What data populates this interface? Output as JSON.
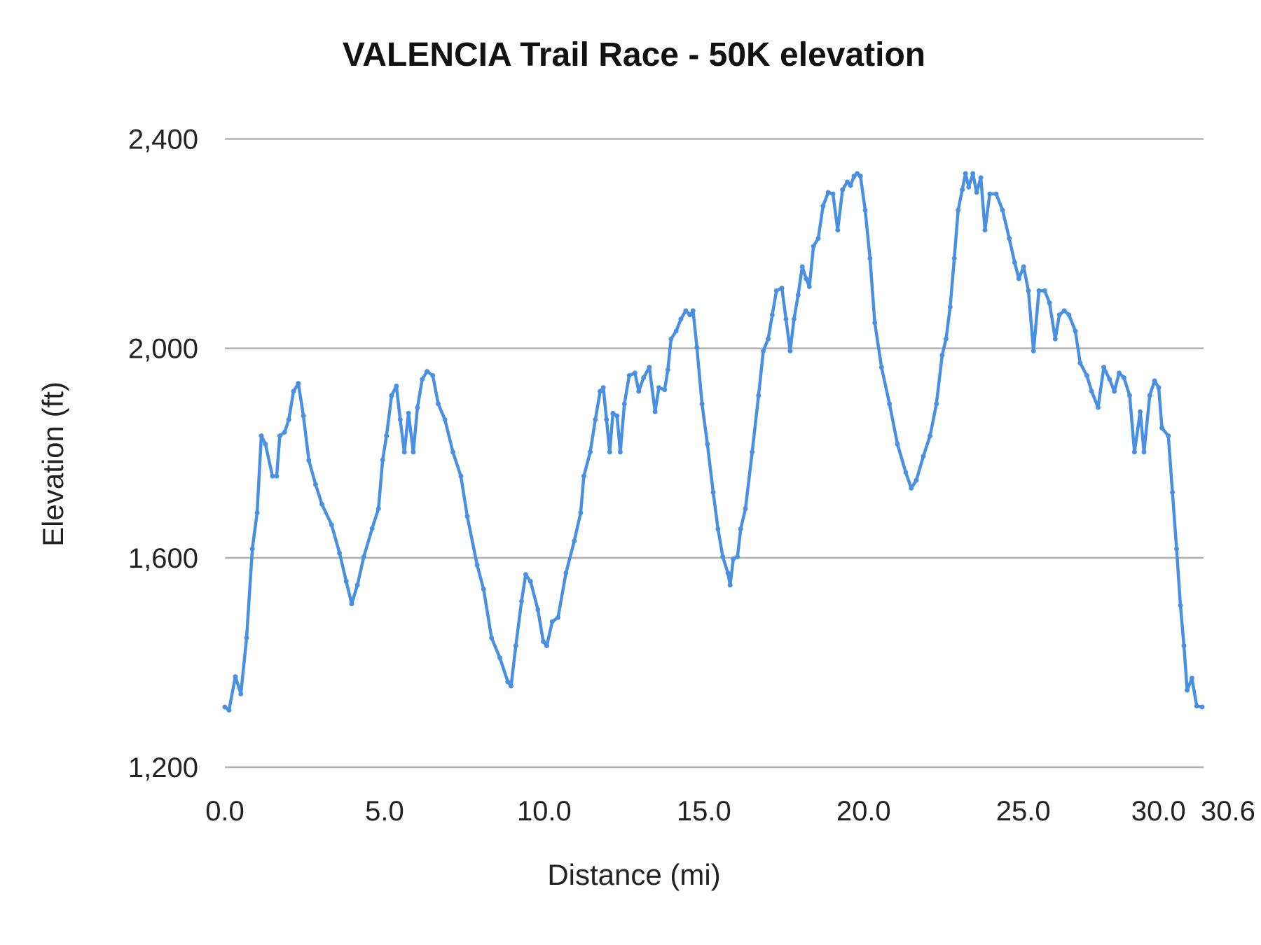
{
  "chart_data": {
    "type": "line",
    "title": "VALENCIA Trail Race - 50K elevation",
    "xlabel": "Distance (mi)",
    "ylabel": "Elevation (ft)",
    "xlim": [
      0,
      30.6
    ],
    "ylim": [
      1200,
      2400
    ],
    "x_ticks": [
      "0.0",
      "5.0",
      "10.0",
      "15.0",
      "20.0",
      "25.0",
      "30.0",
      "30.6"
    ],
    "x_tick_values": [
      0,
      5,
      10,
      15,
      20,
      25,
      30,
      30.6
    ],
    "y_ticks": [
      "2,400",
      "2,000",
      "1,600",
      "1,200"
    ],
    "y_tick_values": [
      2400,
      2000,
      1600,
      1200
    ],
    "grid": "horizontal",
    "legend": "none",
    "markers": true,
    "color": "#4a90e2",
    "series": [
      {
        "x": [
          0,
          0.13,
          0.33,
          0.5,
          0.68,
          0.86,
          1.01,
          1.14,
          1.27,
          1.49,
          1.62,
          1.72,
          1.87,
          2.0,
          2.15,
          2.3,
          2.46,
          2.63,
          2.84,
          3.04,
          3.34,
          3.59,
          3.8,
          3.97,
          4.15,
          4.35,
          4.61,
          4.81,
          4.94,
          5.06,
          5.22,
          5.37,
          5.49,
          5.62,
          5.75,
          5.9,
          6.03,
          6.18,
          6.33,
          6.51,
          6.68,
          6.89,
          7.14,
          7.39,
          7.59,
          7.9,
          8.1,
          8.35,
          8.61,
          8.86,
          8.96,
          9.11,
          9.29,
          9.42,
          9.57,
          9.8,
          9.97,
          10.08,
          10.25,
          10.43,
          10.68,
          10.94,
          11.14,
          11.24,
          11.44,
          11.6,
          11.75,
          11.85,
          11.95,
          12.05,
          12.15,
          12.28,
          12.38,
          12.51,
          12.66,
          12.84,
          12.96,
          13.11,
          13.29,
          13.47,
          13.59,
          13.77,
          13.87,
          13.97,
          14.13,
          14.28,
          14.43,
          14.56,
          14.66,
          14.78,
          14.94,
          15.11,
          15.29,
          15.44,
          15.59,
          15.75,
          15.82,
          15.92,
          16.05,
          16.15,
          16.3,
          16.51,
          16.71,
          16.86,
          17.01,
          17.14,
          17.27,
          17.44,
          17.57,
          17.7,
          17.82,
          17.95,
          18.08,
          18.2,
          18.3,
          18.43,
          18.58,
          18.73,
          18.89,
          19.04,
          19.19,
          19.34,
          19.49,
          19.59,
          19.7,
          19.8,
          19.9,
          20.05,
          20.2,
          20.35,
          20.56,
          20.81,
          21.06,
          21.32,
          21.49,
          21.65,
          21.87,
          22.08,
          22.28,
          22.46,
          22.58,
          22.71,
          22.84,
          22.96,
          23.09,
          23.19,
          23.29,
          23.42,
          23.54,
          23.67,
          23.8,
          23.95,
          24.15,
          24.35,
          24.56,
          24.73,
          24.86,
          25.01,
          25.16,
          25.32,
          25.49,
          25.67,
          25.82,
          26.0,
          26.13,
          26.28,
          26.43,
          26.63,
          26.78,
          26.99,
          27.14,
          27.34,
          27.52,
          27.7,
          27.85,
          28.0,
          28.15,
          28.33,
          28.48,
          28.66,
          28.78,
          28.96,
          29.11,
          29.24,
          29.34,
          29.54,
          29.67,
          29.8,
          29.92,
          30.03,
          30.13,
          30.28,
          30.43,
          30.6
        ],
        "y": [
          1315,
          1309,
          1373,
          1340,
          1447,
          1617,
          1686,
          1833,
          1817,
          1756,
          1756,
          1833,
          1840,
          1864,
          1918,
          1933,
          1871,
          1786,
          1740,
          1702,
          1663,
          1609,
          1555,
          1512,
          1548,
          1602,
          1656,
          1694,
          1787,
          1833,
          1910,
          1928,
          1864,
          1802,
          1876,
          1802,
          1887,
          1941,
          1956,
          1948,
          1894,
          1864,
          1802,
          1756,
          1679,
          1586,
          1540,
          1447,
          1409,
          1363,
          1355,
          1432,
          1517,
          1568,
          1555,
          1501,
          1440,
          1432,
          1478,
          1486,
          1571,
          1632,
          1686,
          1756,
          1802,
          1864,
          1918,
          1925,
          1864,
          1802,
          1876,
          1871,
          1802,
          1894,
          1948,
          1953,
          1918,
          1944,
          1964,
          1879,
          1925,
          1921,
          1959,
          2018,
          2033,
          2056,
          2072,
          2064,
          2072,
          2002,
          1894,
          1817,
          1725,
          1655,
          1602,
          1571,
          1548,
          1598,
          1602,
          1655,
          1694,
          1802,
          1910,
          1995,
          2018,
          2064,
          2110,
          2115,
          2056,
          1995,
          2056,
          2102,
          2156,
          2133,
          2118,
          2195,
          2210,
          2272,
          2298,
          2295,
          2226,
          2303,
          2318,
          2311,
          2329,
          2334,
          2329,
          2264,
          2172,
          2049,
          1964,
          1894,
          1817,
          1763,
          1733,
          1748,
          1794,
          1833,
          1894,
          1987,
          2018,
          2079,
          2172,
          2264,
          2303,
          2334,
          2308,
          2334,
          2298,
          2326,
          2226,
          2295,
          2295,
          2264,
          2210,
          2164,
          2133,
          2156,
          2110,
          1995,
          2110,
          2110,
          2087,
          2018,
          2064,
          2072,
          2064,
          2033,
          1972,
          1948,
          1918,
          1887,
          1964,
          1941,
          1918,
          1953,
          1944,
          1910,
          1802,
          1879,
          1802,
          1910,
          1938,
          1925,
          1848,
          1833,
          1725,
          1617,
          1509,
          1432,
          1347,
          1370,
          1317,
          1315
        ]
      }
    ]
  }
}
